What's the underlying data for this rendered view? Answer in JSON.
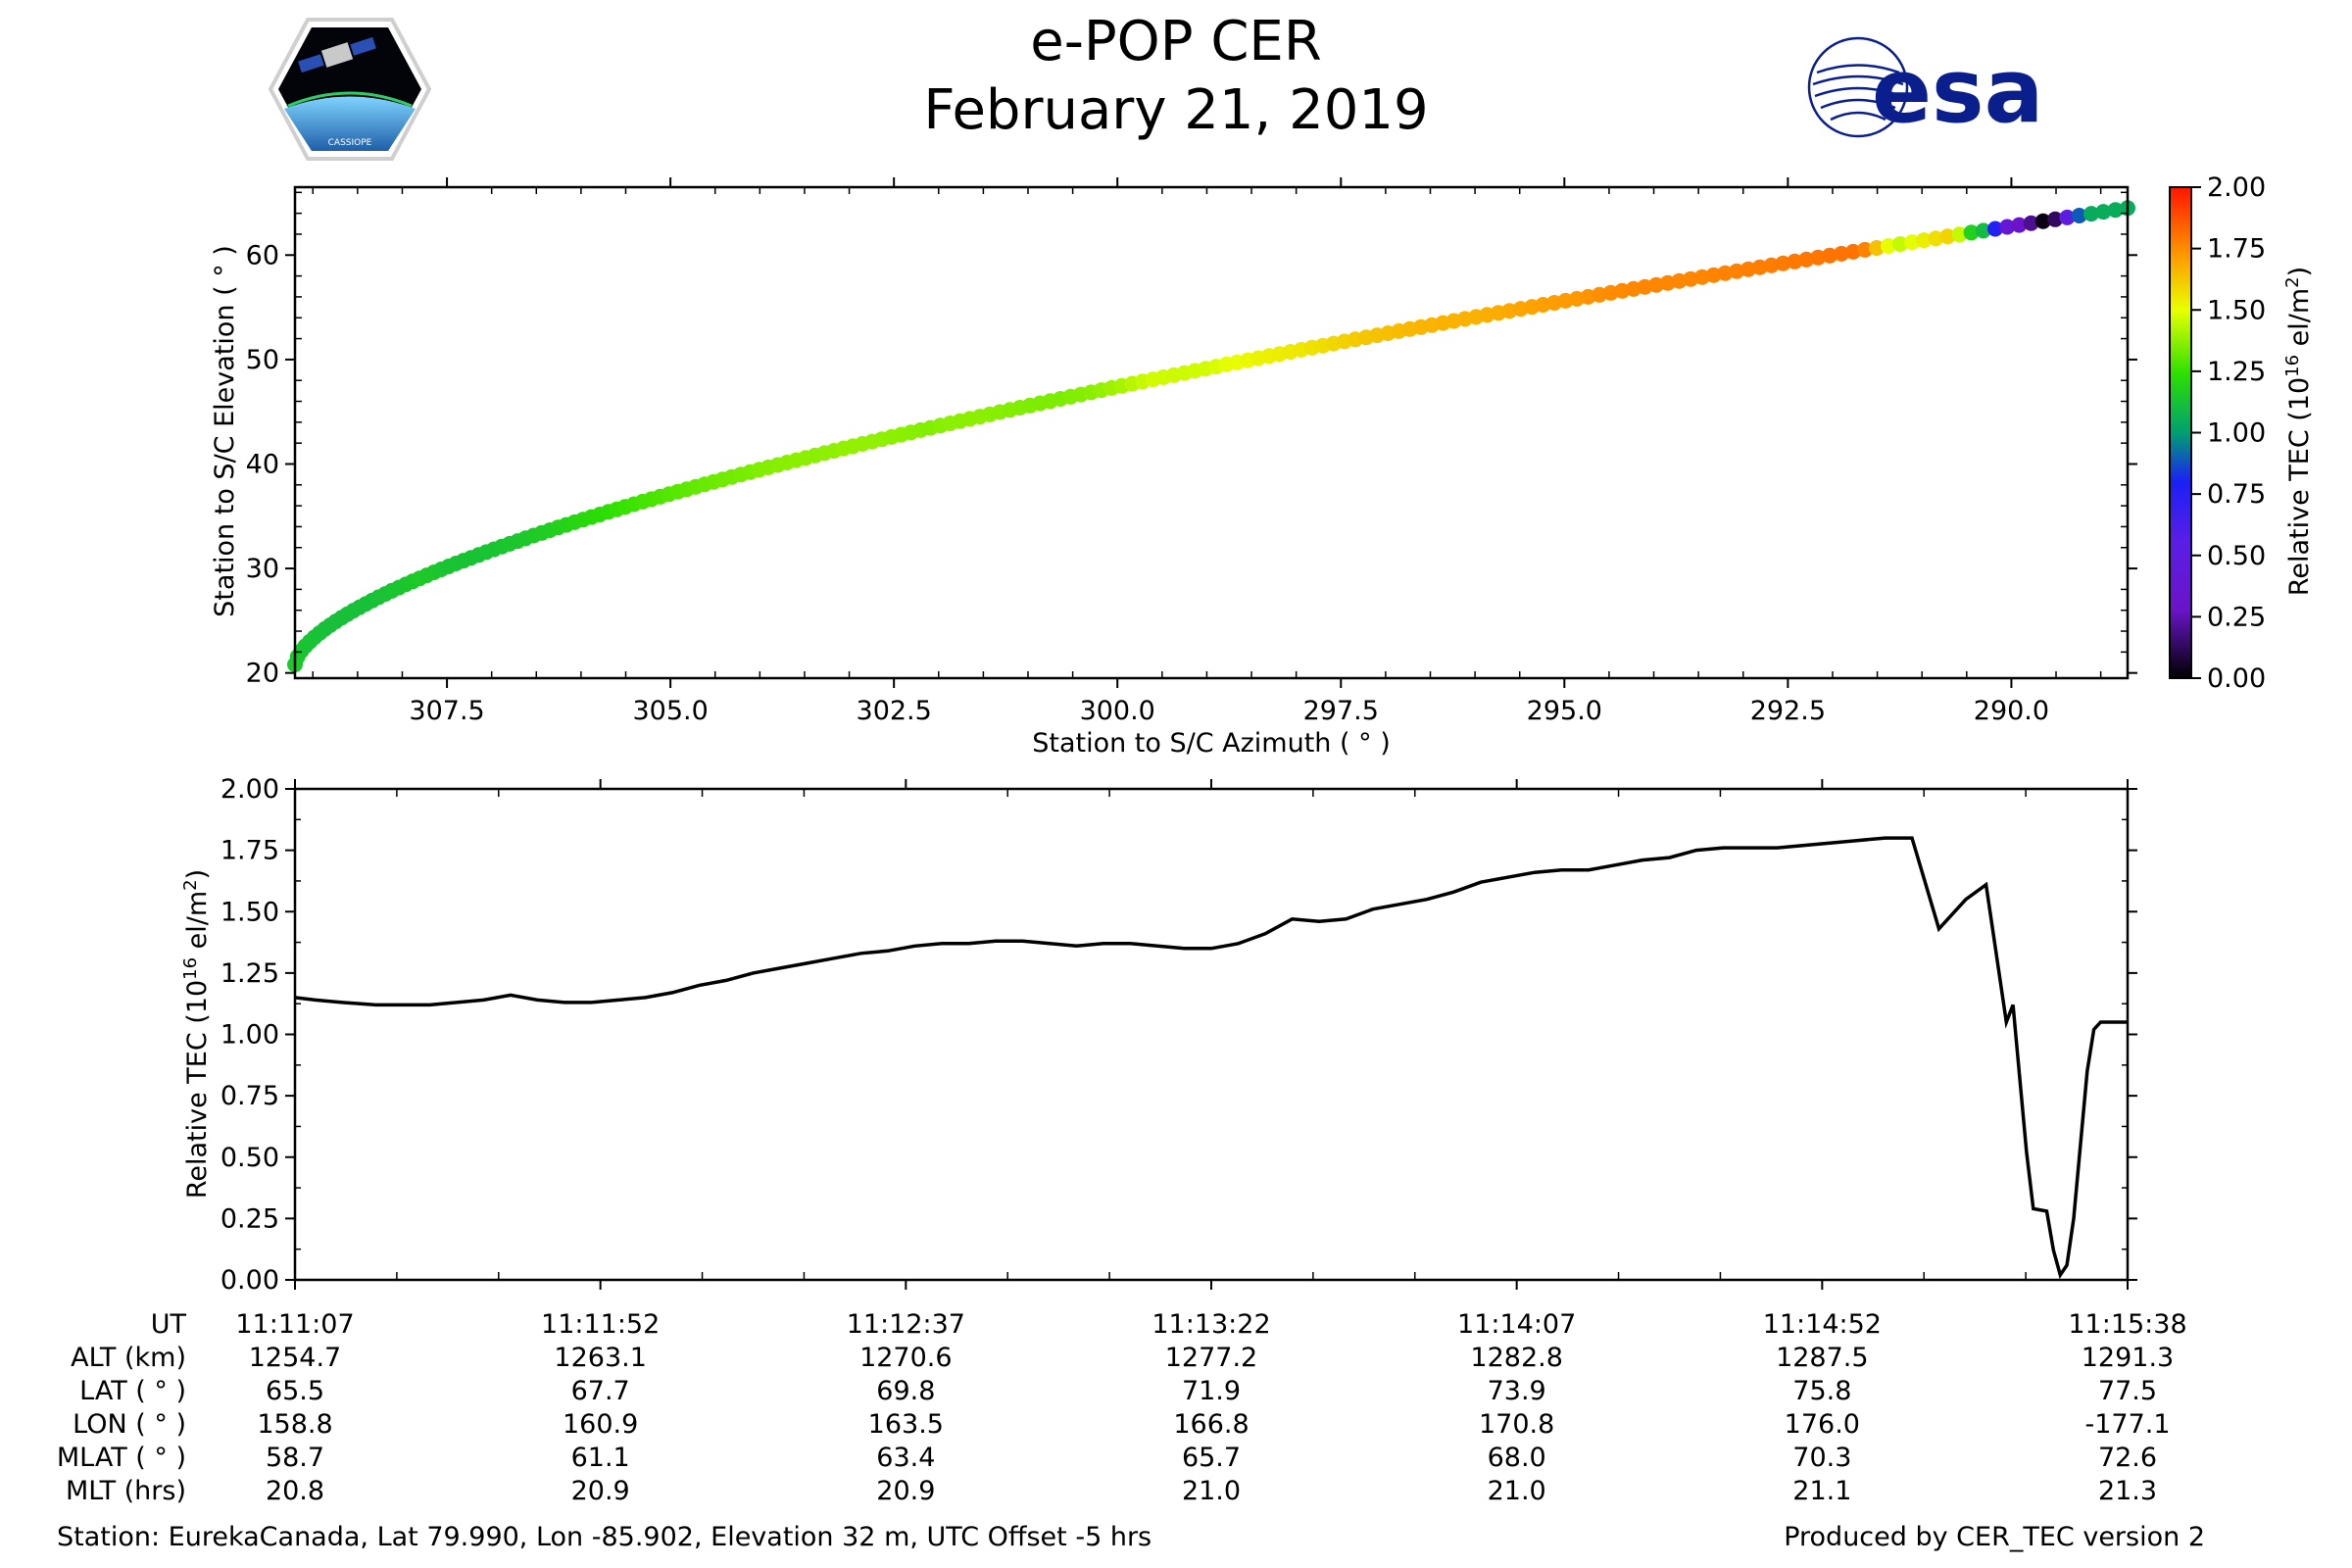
{
  "header": {
    "title": "e-POP CER",
    "date": "February 21, 2019",
    "logo_left_text": "CASSIOPE",
    "logo_right_text": "esa"
  },
  "colors": {
    "esa_blue": "#0a1f8c",
    "line": "#000000"
  },
  "chart_data": [
    {
      "type": "scatter",
      "title": "",
      "xlabel": "Station to S/C Azimuth ( ° )",
      "ylabel": "Station to S/C Elevation ( ° )",
      "xlim": [
        309.2,
        288.7
      ],
      "ylim": [
        19.5,
        66.5
      ],
      "xticks": [
        "307.5",
        "305.0",
        "302.5",
        "300.0",
        "297.5",
        "295.0",
        "292.5",
        "290.0"
      ],
      "xtick_values": [
        307.5,
        305.0,
        302.5,
        300.0,
        297.5,
        295.0,
        292.5,
        290.0
      ],
      "yticks": [
        "20",
        "30",
        "40",
        "50",
        "60"
      ],
      "ytick_values": [
        20,
        30,
        40,
        50,
        60
      ],
      "colorbar": {
        "label": "Relative TEC (10^16 el/m^2)",
        "label_main": "Relative TEC (10",
        "label_exp": "16",
        "label_unit": " el/m",
        "label_sq": "2",
        "label_close": ")",
        "range": [
          0,
          2
        ],
        "ticks": [
          "0.00",
          "0.25",
          "0.50",
          "0.75",
          "1.00",
          "1.25",
          "1.50",
          "1.75",
          "2.00"
        ]
      },
      "track": {
        "azimuth_start": 309.2,
        "azimuth_end": 288.7,
        "elevation_start": 20.8,
        "elevation_end": 64.5
      }
    },
    {
      "type": "line",
      "title": "",
      "xlabel": "",
      "ylabel": "Relative TEC (10^16 el/m^2)",
      "ylabel_main": "Relative TEC (10",
      "ylabel_exp": "16",
      "ylabel_unit": " el/m",
      "ylabel_sq": "2",
      "ylabel_close": ")",
      "xlim_seconds": [
        0,
        272
      ],
      "ylim": [
        0,
        2
      ],
      "yticks": [
        "0.00",
        "0.25",
        "0.50",
        "0.75",
        "1.00",
        "1.25",
        "1.50",
        "1.75",
        "2.00"
      ],
      "series": [
        {
          "name": "Relative TEC",
          "x_seconds": [
            0,
            3,
            7,
            12,
            16,
            20,
            24,
            28,
            32,
            36,
            40,
            44,
            48,
            52,
            56,
            60,
            64,
            68,
            72,
            76,
            80,
            84,
            88,
            92,
            96,
            100,
            104,
            108,
            112,
            116,
            120,
            124,
            128,
            132,
            136,
            140,
            144,
            148,
            152,
            156,
            160,
            164,
            168,
            172,
            176,
            180,
            184,
            188,
            192,
            196,
            200,
            204,
            208,
            212,
            216,
            220,
            224,
            228,
            232,
            236,
            240,
            244,
            248,
            251,
            254,
            255,
            257,
            258,
            260,
            261,
            262,
            263,
            264,
            265,
            266,
            267,
            268,
            269,
            270,
            271,
            272
          ],
          "values": [
            1.15,
            1.14,
            1.13,
            1.12,
            1.12,
            1.12,
            1.13,
            1.14,
            1.16,
            1.14,
            1.13,
            1.13,
            1.14,
            1.15,
            1.17,
            1.2,
            1.22,
            1.25,
            1.27,
            1.29,
            1.31,
            1.33,
            1.34,
            1.36,
            1.37,
            1.37,
            1.38,
            1.38,
            1.37,
            1.36,
            1.37,
            1.37,
            1.36,
            1.35,
            1.35,
            1.37,
            1.41,
            1.47,
            1.46,
            1.47,
            1.51,
            1.53,
            1.55,
            1.58,
            1.62,
            1.64,
            1.66,
            1.67,
            1.67,
            1.69,
            1.71,
            1.72,
            1.75,
            1.76,
            1.76,
            1.76,
            1.77,
            1.78,
            1.79,
            1.8,
            1.8,
            1.43,
            1.55,
            1.61,
            1.05,
            1.12,
            0.52,
            0.29,
            0.28,
            0.12,
            0.02,
            0.06,
            0.25,
            0.55,
            0.85,
            1.02,
            1.05,
            1.05,
            1.05,
            1.05,
            1.05
          ]
        }
      ]
    }
  ],
  "info_table": {
    "row_labels": [
      "UT",
      "ALT (km)",
      "LAT ( ° )",
      "LON ( ° )",
      "MLAT ( ° )",
      "MLT (hrs)"
    ],
    "columns": [
      [
        "11:11:07",
        "1254.7",
        "65.5",
        "158.8",
        "58.7",
        "20.8"
      ],
      [
        "11:11:52",
        "1263.1",
        "67.7",
        "160.9",
        "61.1",
        "20.9"
      ],
      [
        "11:12:37",
        "1270.6",
        "69.8",
        "163.5",
        "63.4",
        "20.9"
      ],
      [
        "11:13:22",
        "1277.2",
        "71.9",
        "166.8",
        "65.7",
        "21.0"
      ],
      [
        "11:14:07",
        "1282.8",
        "73.9",
        "170.8",
        "68.0",
        "21.0"
      ],
      [
        "11:14:52",
        "1287.5",
        "75.8",
        "176.0",
        "70.3",
        "21.1"
      ],
      [
        "11:15:38",
        "1291.3",
        "77.5",
        "-177.1",
        "72.6",
        "21.3"
      ]
    ]
  },
  "footer": {
    "station": "Station: EurekaCanada, Lat 79.990, Lon -85.902, Elevation 32 m, UTC Offset -5 hrs",
    "produced": "Produced by CER_TEC version 2"
  }
}
